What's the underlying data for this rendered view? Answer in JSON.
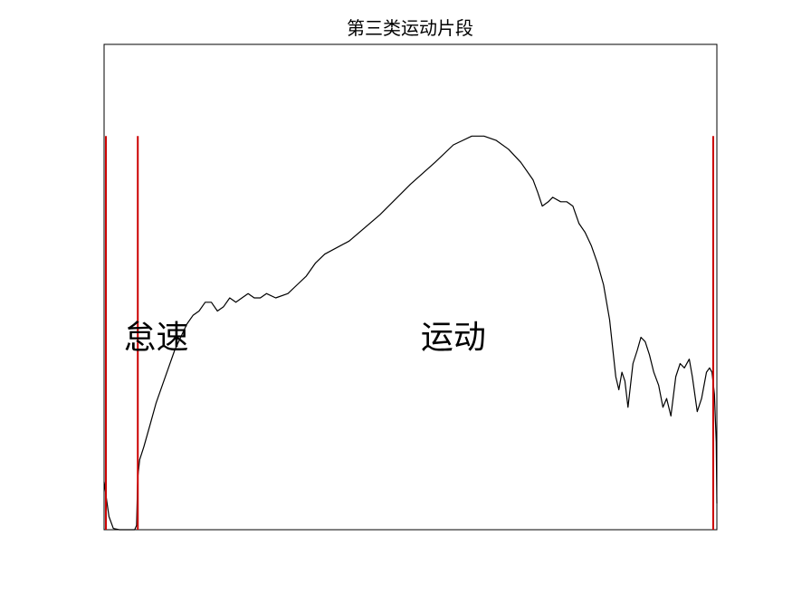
{
  "chart_data": {
    "type": "line",
    "title": "第三类运动片段",
    "xlabel": "",
    "ylabel": "",
    "grid": false,
    "ticks_shown": false,
    "xlim": [
      0,
      100
    ],
    "ylim": [
      0,
      100
    ],
    "series": [
      {
        "color": "#000000",
        "points": [
          [
            0.0,
            11
          ],
          [
            0.3,
            8
          ],
          [
            0.8,
            3
          ],
          [
            1.5,
            0.3
          ],
          [
            2.5,
            0
          ],
          [
            4.0,
            0
          ],
          [
            5.0,
            0
          ],
          [
            5.3,
            1
          ],
          [
            5.5,
            12
          ],
          [
            5.8,
            16
          ],
          [
            6.5,
            19
          ],
          [
            7.5,
            24
          ],
          [
            8.5,
            29
          ],
          [
            9.5,
            33
          ],
          [
            10.5,
            37
          ],
          [
            11.5,
            41
          ],
          [
            12.5,
            44
          ],
          [
            13.5,
            47
          ],
          [
            14.5,
            49
          ],
          [
            15.5,
            50
          ],
          [
            16.5,
            52
          ],
          [
            17.5,
            52
          ],
          [
            18.5,
            50
          ],
          [
            19.5,
            51
          ],
          [
            20.5,
            53
          ],
          [
            21.5,
            52
          ],
          [
            22.5,
            53
          ],
          [
            23.5,
            54
          ],
          [
            24.5,
            53
          ],
          [
            25.5,
            53
          ],
          [
            26.5,
            54
          ],
          [
            28,
            53
          ],
          [
            30,
            54
          ],
          [
            31.5,
            56
          ],
          [
            33,
            58
          ],
          [
            34.5,
            61
          ],
          [
            36,
            63
          ],
          [
            40,
            66
          ],
          [
            45,
            72
          ],
          [
            50,
            79
          ],
          [
            54,
            84
          ],
          [
            57,
            88
          ],
          [
            60,
            90
          ],
          [
            62,
            90
          ],
          [
            64,
            89
          ],
          [
            66,
            87
          ],
          [
            68,
            84
          ],
          [
            70,
            80
          ],
          [
            70.8,
            77
          ],
          [
            71.5,
            74
          ],
          [
            72.5,
            75
          ],
          [
            73.2,
            76
          ],
          [
            74.5,
            75
          ],
          [
            75.5,
            75
          ],
          [
            76.5,
            74
          ],
          [
            77.5,
            70
          ],
          [
            78.5,
            68
          ],
          [
            79.5,
            65
          ],
          [
            80.5,
            61
          ],
          [
            81.5,
            56
          ],
          [
            82.5,
            48
          ],
          [
            83.5,
            35
          ],
          [
            84.0,
            32
          ],
          [
            84.5,
            36
          ],
          [
            85,
            34
          ],
          [
            85.5,
            28
          ],
          [
            86.3,
            38
          ],
          [
            87.0,
            41
          ],
          [
            87.6,
            44
          ],
          [
            88.3,
            43
          ],
          [
            89.0,
            40
          ],
          [
            89.7,
            36
          ],
          [
            90.5,
            33
          ],
          [
            91.2,
            28
          ],
          [
            91.8,
            30
          ],
          [
            92.5,
            26
          ],
          [
            93.3,
            35
          ],
          [
            94.0,
            38
          ],
          [
            94.7,
            37
          ],
          [
            95.5,
            39
          ],
          [
            96.0,
            35
          ],
          [
            96.8,
            27
          ],
          [
            97.5,
            30
          ],
          [
            98.3,
            36
          ],
          [
            98.8,
            37
          ],
          [
            99.2,
            36
          ],
          [
            99.6,
            31
          ],
          [
            99.9,
            20
          ],
          [
            100,
            6
          ]
        ]
      }
    ],
    "boundaries": [
      0.3,
      5.5,
      99.4
    ],
    "boundary_color": "#cc0000",
    "boundary_top": 90,
    "region_labels": [
      {
        "text": "怠速",
        "x": 8.5,
        "y": 44
      },
      {
        "text": "运动",
        "x": 57,
        "y": 44
      }
    ]
  }
}
